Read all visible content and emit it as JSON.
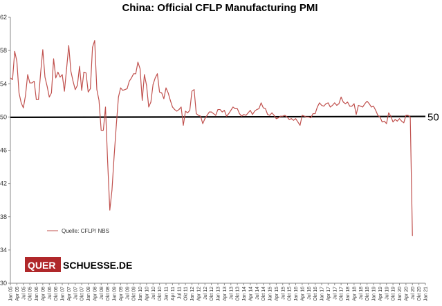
{
  "chart_data": {
    "type": "line",
    "title": "China: Official CFLP Manufacturing PMI",
    "xlabel": "",
    "ylabel": "",
    "ylim": [
      30,
      62
    ],
    "yticks": [
      30,
      34,
      38,
      42,
      46,
      50,
      54,
      58,
      62
    ],
    "grid": false,
    "legend_position": "bottom-left",
    "legend_label": "Quelle: CFLP/ NBS",
    "reference_line": {
      "value": 50,
      "label": "50"
    },
    "x_tick_labels": [
      "Jan 05",
      "Apr 05",
      "Jul 05",
      "Okt 05",
      "Jan 06",
      "Apr 06",
      "Jul 06",
      "Okt 06",
      "Jan 07",
      "Apr 07",
      "Jul 07",
      "Okt 07",
      "Jan 08",
      "Apr 08",
      "Jul 08",
      "Okt 08",
      "Jan 09",
      "Apr 09",
      "Jul 09",
      "Okt 09",
      "Jan 10",
      "Apr 10",
      "Jul 10",
      "Okt 10",
      "Jan 11",
      "Apr 11",
      "Jul 11",
      "Okt 11",
      "Jan 12",
      "Apr 12",
      "Jul 12",
      "Okt 12",
      "Jan 13",
      "Apr 13",
      "Jul 13",
      "Okt 13",
      "Jan 14",
      "Apr 14",
      "Jul 14",
      "Okt 14",
      "Jan 15",
      "Apr 15",
      "Jul 15",
      "Okt 15",
      "Jan 16",
      "Apr 16",
      "Jul 16",
      "Okt 16",
      "Jan 17",
      "Apr 17",
      "Jul 17",
      "Okt 17",
      "Jan 18",
      "Apr 18",
      "Jul 18",
      "Okt 18",
      "Jan 19",
      "Apr 19",
      "Jul 19",
      "Okt 19",
      "Jan 20",
      "Apr 20",
      "Jul 20",
      "Okt 20",
      "Jan 21"
    ],
    "series": [
      {
        "name": "Quelle: CFLP/ NBS",
        "color": "#c0504d",
        "start": "Jan 05",
        "frequency": "monthly",
        "values": [
          54.7,
          54.5,
          57.9,
          56.7,
          52.9,
          51.7,
          51.1,
          52.6,
          55.1,
          54.1,
          54.1,
          54.3,
          52.1,
          52.1,
          55.3,
          58.1,
          54.8,
          53.7,
          52.4,
          52.9,
          57.0,
          54.7,
          55.4,
          54.8,
          55.1,
          53.1,
          55.8,
          58.6,
          55.5,
          54.3,
          53.3,
          53.8,
          56.1,
          53.2,
          55.4,
          55.3,
          53.0,
          53.4,
          58.4,
          59.2,
          53.3,
          52.0,
          48.4,
          48.4,
          51.2,
          44.6,
          38.8,
          41.2,
          45.3,
          49.0,
          52.4,
          53.5,
          53.2,
          53.3,
          53.4,
          54.3,
          54.7,
          55.2,
          55.2,
          56.6,
          55.8,
          52.0,
          55.1,
          53.8,
          51.2,
          51.8,
          53.9,
          54.7,
          55.2,
          53.0,
          52.9,
          52.2,
          53.5,
          52.9,
          52.0,
          51.2,
          50.9,
          50.7,
          50.9,
          51.2,
          49.0,
          50.7,
          50.5,
          50.8,
          53.1,
          53.3,
          50.4,
          50.2,
          50.1,
          49.2,
          49.8,
          50.2,
          50.6,
          50.6,
          50.4,
          50.2,
          50.9,
          50.9,
          50.6,
          50.8,
          50.1,
          50.4,
          50.8,
          51.2,
          51.0,
          51.0,
          50.4,
          50.1,
          50.3,
          50.2,
          50.5,
          50.8,
          50.3,
          50.7,
          50.9,
          51.0,
          51.7,
          51.1,
          51.0,
          50.3,
          50.2,
          50.5,
          50.2,
          49.8,
          49.9,
          50.1,
          50.1,
          50.2,
          50.0,
          49.7,
          49.8,
          49.6,
          49.8,
          49.4,
          49.0,
          50.2,
          50.1,
          50.0,
          50.0,
          49.9,
          50.4,
          50.4,
          51.2,
          51.7,
          51.4,
          51.3,
          51.6,
          51.7,
          51.2,
          51.4,
          51.7,
          51.4,
          51.6,
          52.4,
          51.8,
          51.6,
          51.8,
          51.3,
          51.3,
          51.6,
          50.3,
          51.4,
          51.3,
          51.2,
          51.6,
          51.9,
          51.6,
          51.2,
          51.3,
          50.8,
          50.2,
          50.0,
          49.4,
          49.5,
          49.2,
          50.5,
          50.1,
          49.4,
          49.7,
          49.5,
          49.8,
          49.5,
          49.3,
          50.2,
          50.2,
          50.0,
          35.7
        ]
      }
    ]
  },
  "watermark": {
    "prefix": "QUER",
    "suffix": "SCHUESSE.DE"
  }
}
